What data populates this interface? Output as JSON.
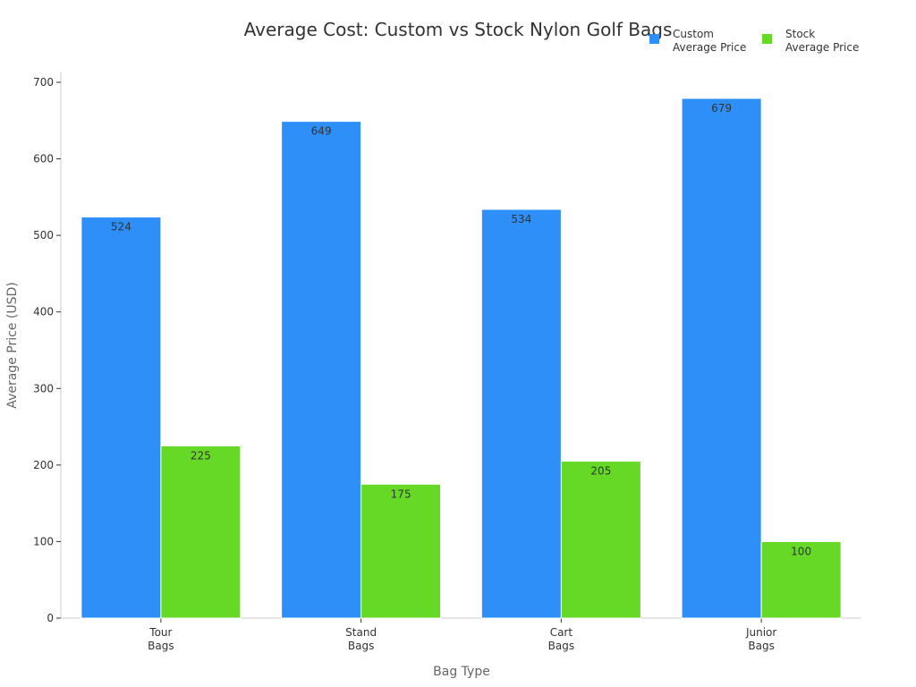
{
  "chart_data": {
    "type": "bar",
    "title": "Average Cost: Custom vs Stock Nylon Golf Bags",
    "xlabel": "Bag Type",
    "ylabel": "Average Price (USD)",
    "categories": [
      [
        "Tour",
        "Bags"
      ],
      [
        "Stand",
        "Bags"
      ],
      [
        "Cart",
        "Bags"
      ],
      [
        "Junior",
        "Bags"
      ]
    ],
    "series": [
      {
        "name": [
          "Custom",
          "Average Price"
        ],
        "values": [
          524,
          649,
          534,
          679
        ],
        "color": "#2d8ff7"
      },
      {
        "name": [
          "Stock",
          "Average Price"
        ],
        "values": [
          225,
          175,
          205,
          100
        ],
        "color": "#66d926"
      }
    ],
    "ylim": [
      0,
      700
    ],
    "yticks": [
      0,
      100,
      200,
      300,
      400,
      500,
      600,
      700
    ],
    "grid": false,
    "legend": "top-right",
    "data_labels": true
  }
}
